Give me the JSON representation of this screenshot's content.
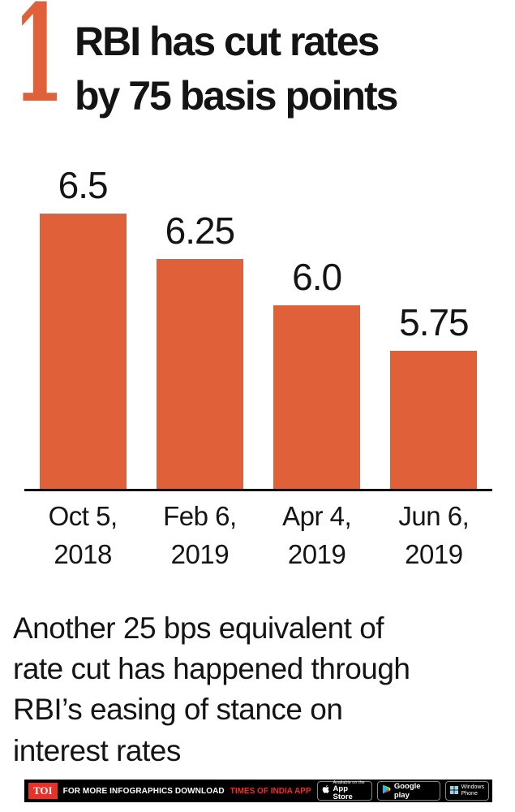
{
  "colors": {
    "bar_orange": "#e0603a",
    "toi_red": "#e6332a",
    "ink": "#141414"
  },
  "header": {
    "index_number": "1",
    "title_line1": "RBI has cut rates",
    "title_line2": "by 75 basis points"
  },
  "chart_data": {
    "type": "bar",
    "title": "RBI has cut rates by 75 basis points",
    "categories": [
      {
        "line1": "Oct 5,",
        "line2": "2018"
      },
      {
        "line1": "Feb 6,",
        "line2": "2019"
      },
      {
        "line1": "Apr 4,",
        "line2": "2019"
      },
      {
        "line1": "Jun 6,",
        "line2": "2019"
      }
    ],
    "values": [
      6.5,
      6.25,
      6.0,
      5.75
    ],
    "value_labels": [
      "6.5",
      "6.25",
      "6.0",
      "5.75"
    ],
    "baseline": 5.0,
    "ylim": [
      5.0,
      6.5
    ],
    "bar_color": "#e0603a",
    "grid": false,
    "legend": false,
    "xlabel": "",
    "ylabel": ""
  },
  "footer": {
    "lines": [
      "Another 25 bps equivalent of",
      "rate cut has happened through",
      "RBI’s easing of stance on",
      "interest rates"
    ]
  },
  "bottom_bar": {
    "logo_text": "TOI",
    "prefix_text": "FOR MORE  INFOGRAPHICS DOWNLOAD",
    "highlight_text": "TIMES OF INDIA APP",
    "badges": {
      "app_store": {
        "line1": "Available on the",
        "line2": "App Store"
      },
      "google_play": {
        "label": "Google play"
      },
      "windows": {
        "line1": "Windows",
        "line2": "Phone"
      }
    }
  }
}
